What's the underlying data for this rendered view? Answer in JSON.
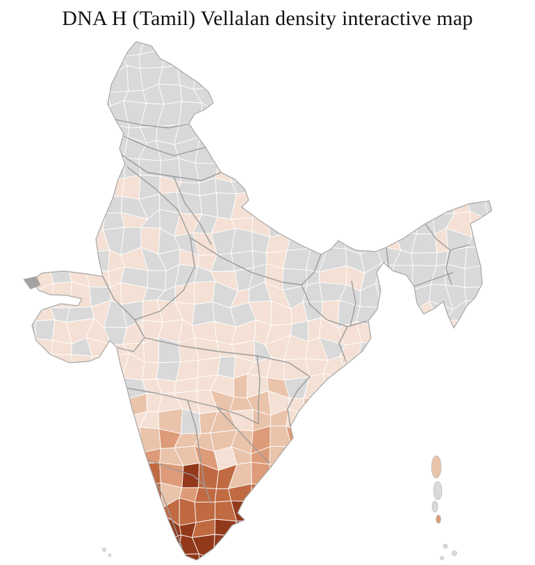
{
  "title": "DNA H (Tamil) Vellalan density interactive map",
  "map": {
    "region": "India district choropleth",
    "palette": {
      "zero": "#d9d9d9",
      "level1": "#f4e0d4",
      "level2": "#eac3ab",
      "level3": "#dd9b79",
      "level4": "#c06a42",
      "level5": "#93391b",
      "city_gray": "#8d8d8d",
      "kutch_gray": "#a3a3a3",
      "district_border": "#ffffff",
      "state_border": "#9a9a9a",
      "outline": "#a6a6a6",
      "background": "#ffffff"
    }
  }
}
